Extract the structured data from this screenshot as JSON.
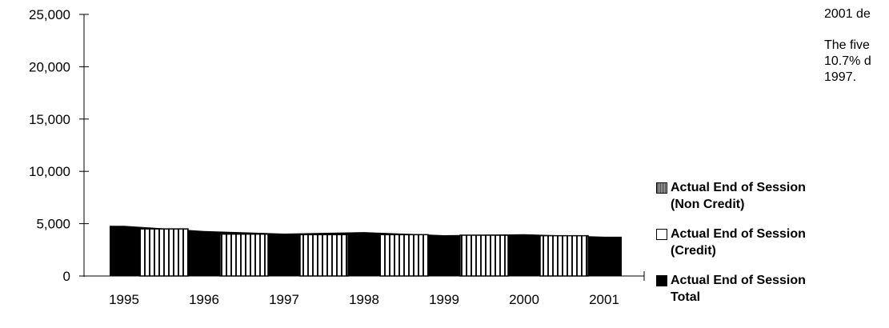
{
  "chart_data": {
    "type": "bar",
    "categories": [
      "1995",
      "1996",
      "1997",
      "1998",
      "1999",
      "2000",
      "2001"
    ],
    "series": [
      {
        "name": "Actual End of Session (Non Credit)",
        "values": [
          0,
          0,
          0,
          0,
          0,
          0,
          0
        ]
      },
      {
        "name": "Actual End of Session (Credit)",
        "values": [
          4500,
          4000,
          3950,
          3950,
          3900,
          3850,
          3800
        ]
      },
      {
        "name": "Actual End of Session Total",
        "values": [
          4800,
          4300,
          4050,
          4200,
          3900,
          4000,
          3750
        ]
      }
    ],
    "y_ticks": [
      "25,000",
      "20,000",
      "15,000",
      "10,000",
      "5,000",
      "0"
    ],
    "ylim": [
      0,
      25000
    ],
    "grid": false,
    "legend_position": "right",
    "colors": {
      "non_credit": "#7a7a7a",
      "credit": "#ffffff",
      "total": "#000000"
    }
  },
  "legend": [
    {
      "key": "non_credit",
      "line1": "Actual End of Session",
      "line2": "(Non Credit)"
    },
    {
      "key": "credit",
      "line1": "Actual End of Session",
      "line2": "(Credit)"
    },
    {
      "key": "total",
      "line1": "Actual End of Session",
      "line2": "Total"
    }
  ],
  "side_text": {
    "line1": "2001 de",
    "line2": "The five",
    "line3": "10.7% d",
    "line4": "1997."
  }
}
